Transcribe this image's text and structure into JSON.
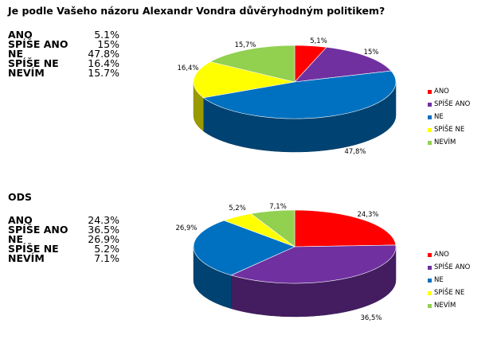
{
  "question": "Je podle Vašeho názoru Alexandr Vondra důvěryhodným politikem?",
  "colors": {
    "ANO": "#ff0000",
    "SPÍŠE ANO": "#7030a0",
    "NE": "#0070c0",
    "SPÍŠE NE": "#ffff00",
    "NEVÍM": "#92d050"
  },
  "table1": {
    "rows": [
      {
        "label": "ANO",
        "value": "5.1%"
      },
      {
        "label": "SPÍŠE ANO",
        "value": "15%"
      },
      {
        "label": "NE",
        "value": "47.8%"
      },
      {
        "label": "SPÍŠE NE",
        "value": "16.4%"
      },
      {
        "label": "NEVÍM",
        "value": "15.7%"
      }
    ]
  },
  "table2": {
    "title": "ODS",
    "rows": [
      {
        "label": "ANO",
        "value": "24.3%"
      },
      {
        "label": "SPÍŠE ANO",
        "value": "36.5%"
      },
      {
        "label": "NE",
        "value": "26.9%"
      },
      {
        "label": "SPÍŠE NE",
        "value": "5.2%"
      },
      {
        "label": "NEVÍM",
        "value": "7.1%"
      }
    ]
  },
  "chart_data": [
    {
      "type": "pie",
      "title": "",
      "categories": [
        "ANO",
        "SPÍŠE ANO",
        "NE",
        "SPÍŠE NE",
        "NEVÍM"
      ],
      "values": [
        5.1,
        15,
        47.8,
        16.4,
        15.7
      ],
      "data_labels": [
        "5,1%",
        "15%",
        "47,8%",
        "16,4%",
        "15,7%"
      ],
      "legend": "right",
      "style": "3d"
    },
    {
      "type": "pie",
      "title": "",
      "categories": [
        "ANO",
        "SPÍŠE ANO",
        "NE",
        "SPÍŠE NE",
        "NEVÍM"
      ],
      "values": [
        24.3,
        36.5,
        26.9,
        5.2,
        7.1
      ],
      "data_labels": [
        "24,3%",
        "36,5%",
        "26,9%",
        "5,2%",
        "7,1%"
      ],
      "legend": "right",
      "style": "3d"
    }
  ]
}
